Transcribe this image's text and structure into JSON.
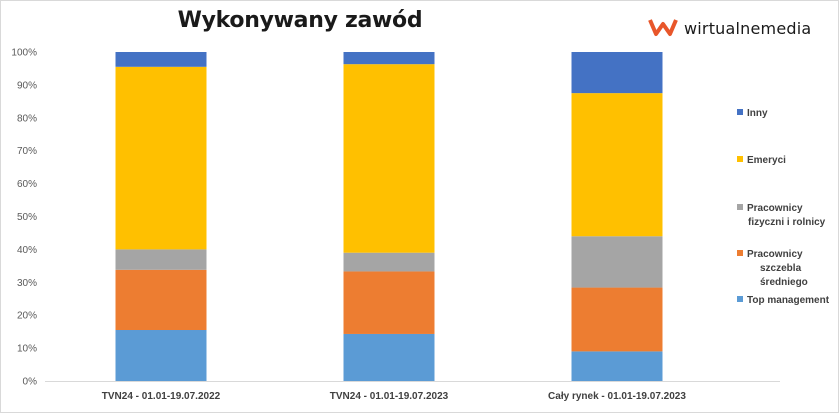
{
  "title": "Wykonywany zawód",
  "logo_text": "wirtualnemedia",
  "colors": {
    "Top management": "#5b9bd5",
    "Pracownicy szczebla średniego": "#ed7d31",
    "Pracownicy fizyczni i rolnicy": "#a5a5a5",
    "Emeryci": "#ffc000",
    "Inny": "#4472c4",
    "logo": "#e8562a"
  },
  "chart_data": {
    "type": "bar",
    "stacked": true,
    "title": "Wykonywany zawód",
    "categories": [
      "TVN24 - 01.01-19.07.2022",
      "TVN24 - 01.01-19.07.2023",
      "Cały rynek - 01.01-19.07.2023"
    ],
    "series": [
      {
        "name": "Top management",
        "values": [
          15.5,
          14.3,
          9.0
        ]
      },
      {
        "name": "Pracownicy szczebla średniego",
        "values": [
          18.3,
          19.0,
          19.4
        ]
      },
      {
        "name": "Pracownicy fizyczni i rolnicy",
        "values": [
          6.2,
          5.7,
          15.6
        ]
      },
      {
        "name": "Emeryci",
        "values": [
          55.5,
          57.3,
          43.5
        ]
      },
      {
        "name": "Inny",
        "values": [
          4.5,
          3.7,
          12.5
        ]
      }
    ],
    "y_ticks": [
      "0%",
      "10%",
      "20%",
      "30%",
      "40%",
      "50%",
      "60%",
      "70%",
      "80%",
      "90%",
      "100%"
    ],
    "ylim": [
      0,
      100
    ],
    "grid": false,
    "legend": "right",
    "legend_order": [
      "Inny",
      "Emeryci",
      "Pracownicy fizyczni i rolnicy",
      "Pracownicy szczebla średniego",
      "Top management"
    ],
    "legend_lines": {
      "Inny": [
        "Inny"
      ],
      "Emeryci": [
        "Emeryci"
      ],
      "Pracownicy fizyczni i rolnicy": [
        "Pracownicy",
        "fizyczni i rolnicy"
      ],
      "Pracownicy szczebla średniego": [
        "Pracownicy",
        "szczebla",
        "średniego"
      ],
      "Top management": [
        "Top management"
      ]
    }
  }
}
